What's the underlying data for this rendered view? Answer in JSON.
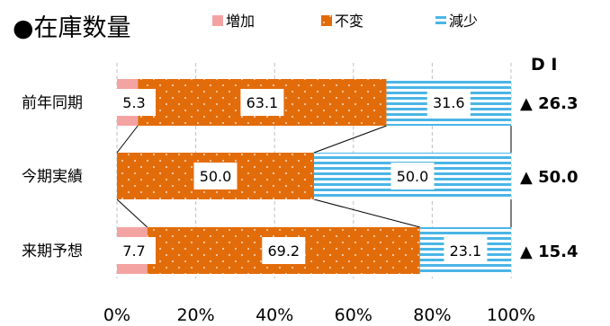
{
  "chart_data": {
    "type": "bar",
    "stacked": true,
    "orientation": "horizontal",
    "title": "●在庫数量",
    "categories": [
      "前年同期",
      "今期実績",
      "来期予想"
    ],
    "series": [
      {
        "name": "増加",
        "values": [
          5.3,
          0.0,
          7.7
        ],
        "color": "#f4a3a3",
        "pattern": "solid"
      },
      {
        "name": "不変",
        "values": [
          63.1,
          50.0,
          69.2
        ],
        "color": "#e36c0a",
        "pattern": "dotted"
      },
      {
        "name": "減少",
        "values": [
          31.6,
          50.0,
          23.1
        ],
        "color": "#4bb5e6",
        "pattern": "horizontal-stripes"
      }
    ],
    "data_labels": [
      [
        "5.3",
        "63.1",
        "31.6"
      ],
      [
        "",
        "50.0",
        "50.0"
      ],
      [
        "7.7",
        "69.2",
        "23.1"
      ]
    ],
    "di_header": "D I",
    "di_values": [
      "▲ 26.3",
      "▲ 50.0",
      "▲ 15.4"
    ],
    "x_ticks": [
      "0%",
      "20%",
      "40%",
      "60%",
      "80%",
      "100%"
    ],
    "xlim": [
      0,
      100
    ],
    "grid": true,
    "legend_position": "top"
  }
}
